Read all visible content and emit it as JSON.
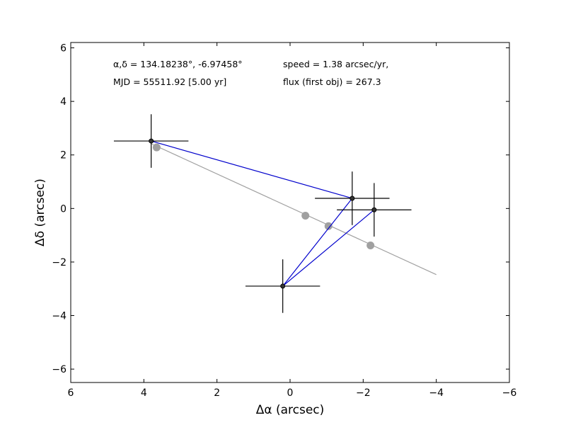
{
  "chart_data": {
    "type": "scatter",
    "xlabel": "Δα (arcsec)",
    "ylabel": "Δδ (arcsec)",
    "xlim": [
      6,
      -6
    ],
    "ylim": [
      -6.5,
      6.2
    ],
    "xticks": [
      6,
      4,
      2,
      0,
      -2,
      -4,
      -6
    ],
    "yticks": [
      6,
      4,
      2,
      0,
      -2,
      -4,
      -6
    ],
    "xtick_labels": [
      "6",
      "4",
      "2",
      "0",
      "−2",
      "−4",
      "−6"
    ],
    "ytick_labels": [
      "6",
      "4",
      "2",
      "0",
      "−2",
      "−4",
      "−6"
    ],
    "annotations": {
      "coords": "α,δ = 134.18238°, -6.97458°",
      "mjd": "MJD = 55511.92 [5.00 yr]",
      "speed": "speed = 1.38 arcsec/yr,",
      "flux": "flux (first obj) = 267.3"
    },
    "series": [
      {
        "kind": "observed",
        "color": "#0000cc",
        "points": [
          {
            "x": 3.8,
            "y": 2.52,
            "xerr": 1.02,
            "yerr": 1.0
          },
          {
            "x": -1.7,
            "y": 0.38,
            "xerr": 1.02,
            "yerr": 1.0
          },
          {
            "x": 0.2,
            "y": -2.9,
            "xerr": 1.02,
            "yerr": 1.0
          },
          {
            "x": -2.3,
            "y": -0.05,
            "xerr": 1.02,
            "yerr": 1.0
          }
        ]
      },
      {
        "kind": "model",
        "color": "#a0a0a0",
        "line": [
          {
            "x": 3.8,
            "y": 2.42
          },
          {
            "x": -4.0,
            "y": -2.47
          }
        ],
        "points": [
          {
            "x": 3.65,
            "y": 2.28
          },
          {
            "x": -0.42,
            "y": -0.27
          },
          {
            "x": -1.05,
            "y": -0.66
          },
          {
            "x": -2.2,
            "y": -1.38
          }
        ]
      }
    ]
  }
}
